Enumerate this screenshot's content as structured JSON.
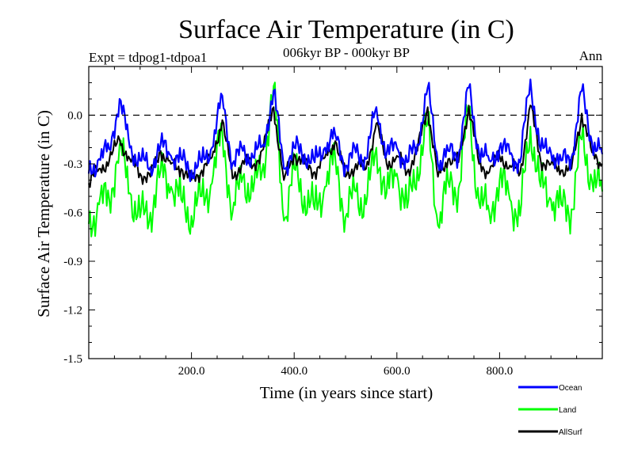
{
  "chart_data": {
    "type": "line",
    "title": "Surface Air Temperature (in C)",
    "subtitle": "006kyr BP - 000kyr BP",
    "experiment_label": "Expt = tdpog1-tdpoa1",
    "season_label": "Ann",
    "xlabel": "Time (in years since start)",
    "ylabel": "Surface Air Temperature (in C)",
    "xlim": [
      0,
      1000
    ],
    "ylim": [
      -1.5,
      0.3
    ],
    "x_ticks": [
      200,
      400,
      600,
      800
    ],
    "x_tick_labels": [
      "200.0",
      "400.0",
      "600.0",
      "800.0"
    ],
    "y_ticks": [
      -1.5,
      -1.2,
      -0.9,
      -0.6,
      -0.3,
      0.0
    ],
    "y_tick_labels": [
      "-1.5",
      "-1.2",
      "-0.9",
      "-0.6",
      "-0.3",
      "0.0"
    ],
    "reference_line": 0.0,
    "legend_position": "bottom-right",
    "series": [
      {
        "name": "Ocean",
        "color": "#0000ff",
        "x_step": 20,
        "values": [
          -0.36,
          -0.27,
          -0.21,
          0.1,
          -0.2,
          -0.28,
          -0.32,
          -0.18,
          -0.25,
          -0.27,
          -0.34,
          -0.29,
          -0.2,
          0.12,
          -0.3,
          -0.22,
          -0.26,
          -0.18,
          0.15,
          -0.33,
          -0.2,
          -0.24,
          -0.29,
          -0.2,
          -0.12,
          -0.31,
          -0.23,
          -0.27,
          0.05,
          -0.24,
          -0.2,
          -0.29,
          -0.18,
          0.17,
          -0.3,
          -0.22,
          -0.24,
          0.17,
          -0.23,
          -0.28,
          -0.2,
          -0.24,
          -0.29,
          0.22,
          -0.22,
          -0.23,
          -0.28,
          -0.26,
          0.15,
          -0.17,
          -0.24
        ]
      },
      {
        "name": "Land",
        "color": "#00ff00",
        "x_step": 20,
        "values": [
          -0.67,
          -0.55,
          -0.52,
          -0.18,
          -0.48,
          -0.63,
          -0.6,
          -0.34,
          -0.44,
          -0.52,
          -0.62,
          -0.5,
          -0.42,
          -0.1,
          -0.6,
          -0.38,
          -0.47,
          -0.3,
          0.18,
          -0.65,
          -0.33,
          -0.5,
          -0.58,
          -0.44,
          -0.26,
          -0.63,
          -0.47,
          -0.55,
          -0.2,
          -0.48,
          -0.36,
          -0.57,
          -0.32,
          -0.05,
          -0.68,
          -0.41,
          -0.45,
          0.03,
          -0.54,
          -0.6,
          -0.4,
          -0.52,
          -0.62,
          -0.07,
          -0.44,
          -0.52,
          -0.55,
          -0.58,
          -0.15,
          -0.4,
          -0.47
        ]
      },
      {
        "name": "AllSurf",
        "color": "#000000",
        "x_step": 20,
        "values": [
          -0.42,
          -0.33,
          -0.28,
          -0.15,
          -0.27,
          -0.36,
          -0.38,
          -0.22,
          -0.3,
          -0.33,
          -0.4,
          -0.34,
          -0.26,
          -0.03,
          -0.39,
          -0.28,
          -0.31,
          -0.21,
          0.05,
          -0.4,
          -0.24,
          -0.3,
          -0.35,
          -0.26,
          -0.16,
          -0.38,
          -0.3,
          -0.33,
          -0.05,
          -0.3,
          -0.25,
          -0.35,
          -0.22,
          0.05,
          -0.38,
          -0.27,
          -0.29,
          0.06,
          -0.3,
          -0.35,
          -0.25,
          -0.31,
          -0.36,
          0.06,
          -0.28,
          -0.3,
          -0.34,
          -0.33,
          0.01,
          -0.23,
          -0.3
        ]
      }
    ]
  }
}
